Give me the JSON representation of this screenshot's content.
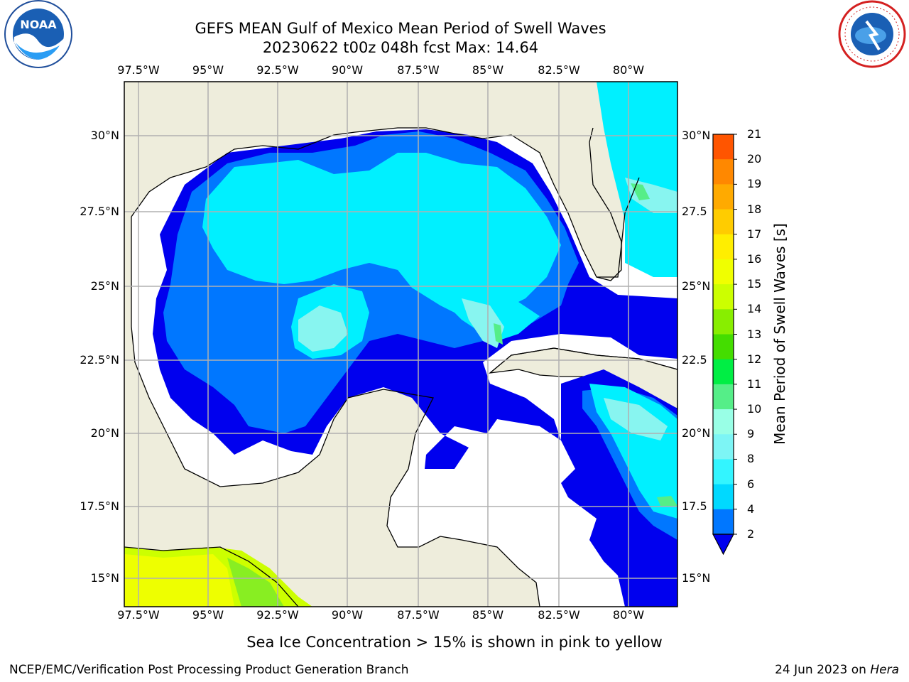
{
  "title_line1": "GEFS MEAN Gulf of Mexico Mean Period of Swell Waves",
  "title_line2": "20230622 t00z 048h fcst   Max: 14.64",
  "subtitle": "Sea Ice Concentration > 15% is shown in pink to yellow",
  "footer_left": "NCEP/EMC/Verification Post Processing Product Generation Branch",
  "footer_right_date": "24 Jun 2023 on ",
  "footer_right_host": "Hera",
  "logos": {
    "left": "NOAA",
    "right_text": "NATIONAL WEATHER SERVICE"
  },
  "colors": {
    "land": "#eeeddc",
    "ocean_nodata": "#ffffff",
    "grid": "#b0b0b0"
  },
  "map": {
    "x_ticks": [
      "97.5°W",
      "95°W",
      "92.5°W",
      "90°W",
      "87.5°W",
      "85°W",
      "82.5°W",
      "80°W"
    ],
    "y_ticks_left": [
      "30°N",
      "27.5°N",
      "25°N",
      "22.5°N",
      "20°N",
      "17.5°N",
      "15°N"
    ],
    "y_ticks_right": [
      "30°N",
      "27.5",
      "25°N",
      "22.5",
      "20°N",
      "17.5",
      "15°N"
    ]
  },
  "colorbar": {
    "label": "Mean Period of Swell Waves [s]",
    "ticks": [
      "21",
      "20",
      "19",
      "18",
      "17",
      "16",
      "15",
      "14",
      "13",
      "12",
      "11",
      "10",
      "9",
      "8",
      "6",
      "4",
      "2"
    ],
    "levels": [
      2,
      4,
      6,
      8,
      9,
      10,
      11,
      12,
      13,
      14,
      15,
      16,
      17,
      18,
      19,
      20,
      21
    ],
    "colors": [
      "#0000ee",
      "#0077ff",
      "#00d9ff",
      "#33f5ff",
      "#7df5f5",
      "#99ffe6",
      "#55ee88",
      "#00ee44",
      "#44dd00",
      "#88ee00",
      "#ccff00",
      "#f0ff00",
      "#ffee00",
      "#ffcc00",
      "#ffaa00",
      "#ff8800",
      "#ff5500",
      "#ff2200",
      "#ff0000"
    ]
  },
  "chart_data": {
    "type": "heatmap",
    "title": "GEFS MEAN Gulf of Mexico Mean Period of Swell Waves",
    "run": "20230622 t00z 048h fcst",
    "max": 14.64,
    "units": "s",
    "lon_range": [
      -98,
      -79
    ],
    "lat_range": [
      14,
      32
    ],
    "note": "Sea Ice Concentration > 15% is shown in pink to yellow"
  }
}
